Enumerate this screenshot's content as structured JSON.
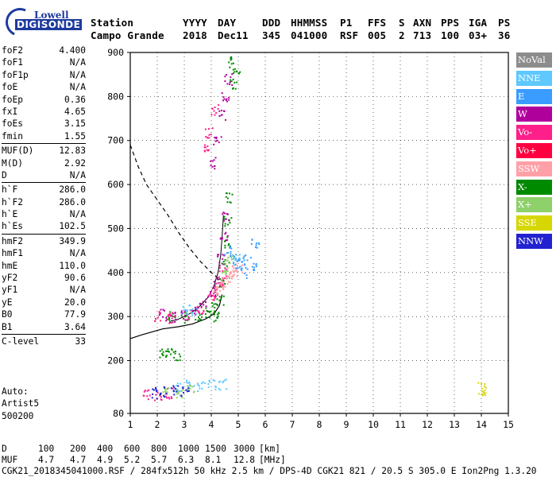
{
  "logo": {
    "line1": "Lowell",
    "line2": "DIGISONDE"
  },
  "header": {
    "row1": [
      "Station",
      "YYYY",
      "DAY",
      "DDD",
      "HHMMSS",
      "P1",
      "FFS",
      "S",
      "AXN",
      "PPS",
      "IGA",
      "PS"
    ],
    "row2": [
      "Campo Grande",
      "2018",
      "Dec11",
      "345",
      "041000",
      "RSF",
      "005",
      "2",
      "713",
      "100",
      "03+",
      "36"
    ]
  },
  "params": {
    "group1": [
      {
        "name": "foF2",
        "value": "4.400"
      },
      {
        "name": "foF1",
        "value": "N/A"
      },
      {
        "name": "foF1p",
        "value": "N/A"
      },
      {
        "name": "foE",
        "value": "N/A"
      },
      {
        "name": "foEp",
        "value": "0.36"
      },
      {
        "name": "fxI",
        "value": "4.65"
      },
      {
        "name": "foEs",
        "value": "3.15"
      },
      {
        "name": "fmin",
        "value": "1.55"
      }
    ],
    "group2": [
      {
        "name": "MUF(D)",
        "value": "12.83"
      },
      {
        "name": "M(D)",
        "value": "2.92"
      },
      {
        "name": "D",
        "value": "N/A"
      }
    ],
    "group3": [
      {
        "name": "h`F",
        "value": "286.0"
      },
      {
        "name": "h`F2",
        "value": "286.0"
      },
      {
        "name": "h`E",
        "value": "N/A"
      },
      {
        "name": "h`Es",
        "value": "102.5"
      }
    ],
    "group4": [
      {
        "name": "hmF2",
        "value": "349.9"
      },
      {
        "name": "hmF1",
        "value": "N/A"
      },
      {
        "name": "hmE",
        "value": "110.0"
      },
      {
        "name": "yF2",
        "value": "90.6"
      },
      {
        "name": "yF1",
        "value": "N/A"
      },
      {
        "name": "yE",
        "value": "20.0"
      },
      {
        "name": "B0",
        "value": "77.9"
      },
      {
        "name": "B1",
        "value": "3.64"
      }
    ],
    "group5": [
      {
        "name": "C-level",
        "value": "33"
      }
    ]
  },
  "autoscaling": {
    "line1": "Auto:",
    "line2": "Artist5",
    "line3": "500200"
  },
  "legend": [
    {
      "label": "NoVal",
      "color": "#8c8c8c"
    },
    {
      "label": "NNE",
      "color": "#5ec8ff"
    },
    {
      "label": "E",
      "color": "#3a9cff"
    },
    {
      "label": "W",
      "color": "#b0009c"
    },
    {
      "label": "Vo-",
      "color": "#ff1f8a"
    },
    {
      "label": "Vo+",
      "color": "#ff0040"
    },
    {
      "label": "SSW",
      "color": "#ffa0a8"
    },
    {
      "label": "X-",
      "color": "#008a00"
    },
    {
      "label": "X+",
      "color": "#8ed06a"
    },
    {
      "label": "SSE",
      "color": "#d6d600"
    },
    {
      "label": "NNW",
      "color": "#2222d0"
    }
  ],
  "chart_data": {
    "type": "scatter",
    "title": "",
    "xlabel": "",
    "ylabel": "",
    "xlim": [
      1,
      15
    ],
    "ylim": [
      80,
      900
    ],
    "xticks": [
      1,
      2,
      3,
      4,
      5,
      6,
      7,
      8,
      9,
      10,
      11,
      12,
      13,
      14,
      15
    ],
    "yticks": [
      80,
      200,
      300,
      400,
      500,
      600,
      700,
      800,
      900
    ],
    "series": [
      {
        "name": "X-",
        "color": "#008a00",
        "points": [
          [
            4.2,
            300
          ],
          [
            4.3,
            340
          ],
          [
            4.4,
            380
          ],
          [
            4.5,
            420
          ],
          [
            4.55,
            470
          ],
          [
            4.6,
            520
          ],
          [
            4.65,
            570
          ],
          [
            4.1,
            320
          ],
          [
            3.9,
            310
          ],
          [
            3.5,
            305
          ],
          [
            3.0,
            300
          ],
          [
            2.5,
            300
          ],
          [
            2.2,
            215
          ],
          [
            2.4,
            216
          ],
          [
            2.7,
            214
          ],
          [
            4.9,
            860
          ],
          [
            4.8,
            830
          ],
          [
            4.7,
            880
          ]
        ]
      },
      {
        "name": "W",
        "color": "#b0009c",
        "points": [
          [
            2.2,
            305
          ],
          [
            2.6,
            300
          ],
          [
            3.0,
            305
          ],
          [
            3.4,
            315
          ],
          [
            3.7,
            330
          ],
          [
            4.0,
            355
          ],
          [
            4.2,
            380
          ],
          [
            4.35,
            430
          ],
          [
            4.45,
            480
          ],
          [
            4.5,
            530
          ],
          [
            4.0,
            650
          ],
          [
            4.2,
            700
          ],
          [
            4.4,
            760
          ],
          [
            4.5,
            800
          ],
          [
            4.6,
            840
          ]
        ]
      },
      {
        "name": "Vo-",
        "color": "#ff1f8a",
        "points": [
          [
            2.0,
            300
          ],
          [
            2.5,
            298
          ],
          [
            3.1,
            305
          ],
          [
            3.6,
            320
          ],
          [
            4.0,
            345
          ],
          [
            4.3,
            370
          ],
          [
            4.4,
            400
          ],
          [
            3.8,
            680
          ],
          [
            3.9,
            720
          ],
          [
            4.1,
            770
          ],
          [
            1.6,
            125
          ],
          [
            2.0,
            122
          ],
          [
            2.4,
            126
          ]
        ]
      },
      {
        "name": "SSW",
        "color": "#ffa0a8",
        "points": [
          [
            4.5,
            380
          ],
          [
            4.6,
            390
          ],
          [
            4.7,
            400
          ],
          [
            4.8,
            405
          ],
          [
            5.0,
            410
          ],
          [
            4.3,
            370
          ],
          [
            4.1,
            360
          ]
        ]
      },
      {
        "name": "E",
        "color": "#3a9cff",
        "points": [
          [
            5.0,
            420
          ],
          [
            5.3,
            430
          ],
          [
            5.5,
            415
          ],
          [
            5.2,
            400
          ],
          [
            4.8,
            430
          ],
          [
            4.6,
            450
          ],
          [
            5.6,
            470
          ]
        ]
      },
      {
        "name": "NNE",
        "color": "#5ec8ff",
        "points": [
          [
            2.8,
            140
          ],
          [
            3.2,
            145
          ],
          [
            3.6,
            142
          ],
          [
            4.0,
            148
          ],
          [
            4.4,
            146
          ],
          [
            3.0,
            312
          ],
          [
            3.3,
            315
          ],
          [
            4.9,
            430
          ]
        ]
      },
      {
        "name": "X+",
        "color": "#8ed06a",
        "points": [
          [
            2.3,
            130
          ],
          [
            2.8,
            130
          ],
          [
            3.2,
            135
          ],
          [
            4.5,
            400
          ],
          [
            4.6,
            430
          ]
        ]
      },
      {
        "name": "NNW",
        "color": "#2222d0",
        "points": [
          [
            1.9,
            128
          ],
          [
            2.2,
            130
          ],
          [
            2.6,
            132
          ],
          [
            3.0,
            128
          ]
        ]
      },
      {
        "name": "SSE",
        "color": "#d6d600",
        "points": [
          [
            14.0,
            140
          ],
          [
            14.0,
            132
          ]
        ]
      }
    ],
    "profile_curve": [
      [
        4.4,
        350
      ],
      [
        4.3,
        325
      ],
      [
        4.1,
        306
      ],
      [
        3.8,
        295
      ],
      [
        3.3,
        283
      ],
      [
        2.8,
        277
      ],
      [
        2.2,
        272
      ],
      [
        1.8,
        265
      ],
      [
        1.4,
        258
      ],
      [
        1.0,
        250
      ]
    ],
    "muf_curve": [
      [
        1.0,
        690
      ],
      [
        1.3,
        640
      ],
      [
        1.6,
        600
      ],
      [
        2.0,
        565
      ],
      [
        2.4,
        530
      ],
      [
        2.8,
        490
      ],
      [
        3.2,
        455
      ],
      [
        3.6,
        425
      ],
      [
        4.0,
        400
      ],
      [
        4.4,
        380
      ]
    ],
    "black_trace": [
      [
        2.5,
        290
      ],
      [
        2.7,
        292
      ],
      [
        3.0,
        300
      ],
      [
        3.3,
        310
      ],
      [
        3.6,
        325
      ],
      [
        3.9,
        345
      ],
      [
        4.1,
        370
      ],
      [
        4.25,
        400
      ],
      [
        4.35,
        440
      ],
      [
        4.4,
        480
      ],
      [
        4.45,
        530
      ]
    ]
  },
  "footer": {
    "d_label": "D",
    "d_values": [
      "100",
      "200",
      "400",
      "600",
      "800",
      "1000",
      "1500",
      "3000",
      "[km]"
    ],
    "muf_label": "MUF",
    "muf_values": [
      "4.7",
      "4.7",
      "4.9",
      "5.2",
      "5.7",
      "6.3",
      "8.1",
      "12.8",
      "[MHz]"
    ],
    "fileline": "CGK21_2018345041000.RSF / 284fx512h 50 kHz 2.5 km / DPS-4D CGK21 821 / 20.5 S 305.0 E Ion2Png 1.3.20"
  }
}
